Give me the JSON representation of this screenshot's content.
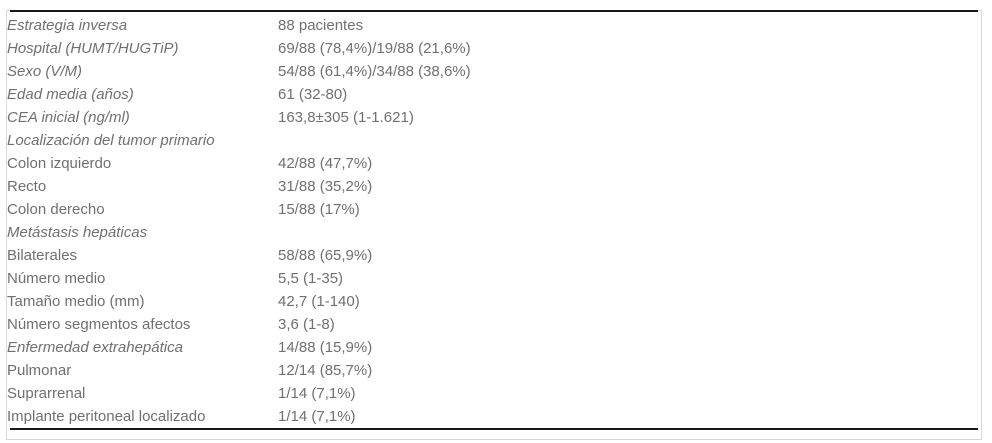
{
  "colors": {
    "text": "#707070",
    "rule": "#1a1a1a",
    "frame_border": "#d8d8d8",
    "background": "#ffffff"
  },
  "table": {
    "rows": [
      {
        "label": "Estrategia inversa",
        "value": "88 pacientes",
        "italic": true
      },
      {
        "label": "Hospital (HUMT/HUGTiP)",
        "value": "69/88 (78,4%)/19/88 (21,6%)",
        "italic": true
      },
      {
        "label": "Sexo (V/M)",
        "value": "54/88 (61,4%)/34/88 (38,6%)",
        "italic": true
      },
      {
        "label": "Edad media (años)",
        "value": "61 (32-80)",
        "italic": true
      },
      {
        "label": "CEA inicial (ng/ml)",
        "value": "163,8±305 (1-1.621)",
        "italic": true
      },
      {
        "label": "Localización del tumor primario",
        "value": "",
        "italic": true
      },
      {
        "label": "Colon izquierdo",
        "value": "42/88 (47,7%)",
        "italic": false
      },
      {
        "label": "Recto",
        "value": "31/88 (35,2%)",
        "italic": false
      },
      {
        "label": "Colon derecho",
        "value": "15/88 (17%)",
        "italic": false
      },
      {
        "label": "Metástasis hepáticas",
        "value": "",
        "italic": true
      },
      {
        "label": "Bilaterales",
        "value": "58/88 (65,9%)",
        "italic": false
      },
      {
        "label": "Número medio",
        "value": "5,5 (1-35)",
        "italic": false
      },
      {
        "label": "Tamaño medio (mm)",
        "value": "42,7 (1-140)",
        "italic": false
      },
      {
        "label": "Número segmentos afectos",
        "value": "3,6 (1-8)",
        "italic": false
      },
      {
        "label": "Enfermedad extrahepática",
        "value": "14/88 (15,9%)",
        "italic": true
      },
      {
        "label": "Pulmonar",
        "value": "12/14 (85,7%)",
        "italic": false
      },
      {
        "label": "Suprarrenal",
        "value": "1/14 (7,1%)",
        "italic": false
      },
      {
        "label": "Implante peritoneal localizado",
        "value": "1/14 (7,1%)",
        "italic": false
      }
    ]
  }
}
